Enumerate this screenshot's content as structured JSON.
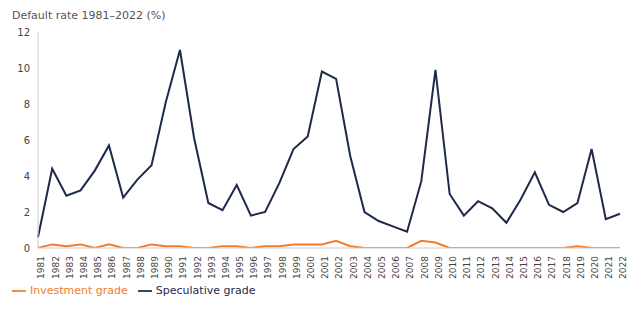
{
  "chart_data": {
    "type": "line",
    "title": "Default rate 1981–2022 (%)",
    "categories": [
      "1981",
      "1982",
      "1983",
      "1984",
      "1985",
      "1986",
      "1987",
      "1988",
      "1989",
      "1990",
      "1991",
      "1992",
      "1993",
      "1994",
      "1995",
      "1996",
      "1997",
      "1998",
      "1999",
      "2000",
      "2001",
      "2002",
      "2003",
      "2004",
      "2005",
      "2006",
      "2007",
      "2008",
      "2009",
      "2010",
      "2011",
      "2012",
      "2013",
      "2014",
      "2015",
      "2016",
      "2017",
      "2018",
      "2019",
      "2020",
      "2021",
      "2022"
    ],
    "series": [
      {
        "name": "Investment grade",
        "color": "#f07d2e",
        "values": [
          0,
          0.2,
          0.1,
          0.2,
          0,
          0.2,
          0,
          0,
          0.2,
          0.1,
          0.1,
          0,
          0,
          0.1,
          0.1,
          0,
          0.1,
          0.1,
          0.2,
          0.2,
          0.2,
          0.4,
          0.1,
          0,
          0,
          0,
          0,
          0.4,
          0.3,
          0,
          0,
          0,
          0,
          0,
          0,
          0,
          0,
          0,
          0.1,
          0,
          0,
          0
        ]
      },
      {
        "name": "Speculative grade",
        "color": "#1e2a4a",
        "values": [
          0.6,
          4.4,
          2.9,
          3.2,
          4.3,
          5.7,
          2.8,
          3.8,
          4.6,
          8.1,
          11.0,
          6.1,
          2.5,
          2.1,
          3.5,
          1.8,
          2.0,
          3.6,
          5.5,
          6.2,
          9.8,
          9.4,
          5.1,
          2.0,
          1.5,
          1.2,
          0.9,
          3.7,
          9.9,
          3.0,
          1.8,
          2.6,
          2.2,
          1.4,
          2.7,
          4.2,
          2.4,
          2.0,
          2.5,
          5.5,
          1.6,
          1.9
        ]
      }
    ],
    "ylim": [
      0,
      12
    ],
    "yticks": [
      0,
      2,
      4,
      6,
      8,
      10,
      12
    ],
    "grid": false,
    "legend": "bottom-left"
  }
}
